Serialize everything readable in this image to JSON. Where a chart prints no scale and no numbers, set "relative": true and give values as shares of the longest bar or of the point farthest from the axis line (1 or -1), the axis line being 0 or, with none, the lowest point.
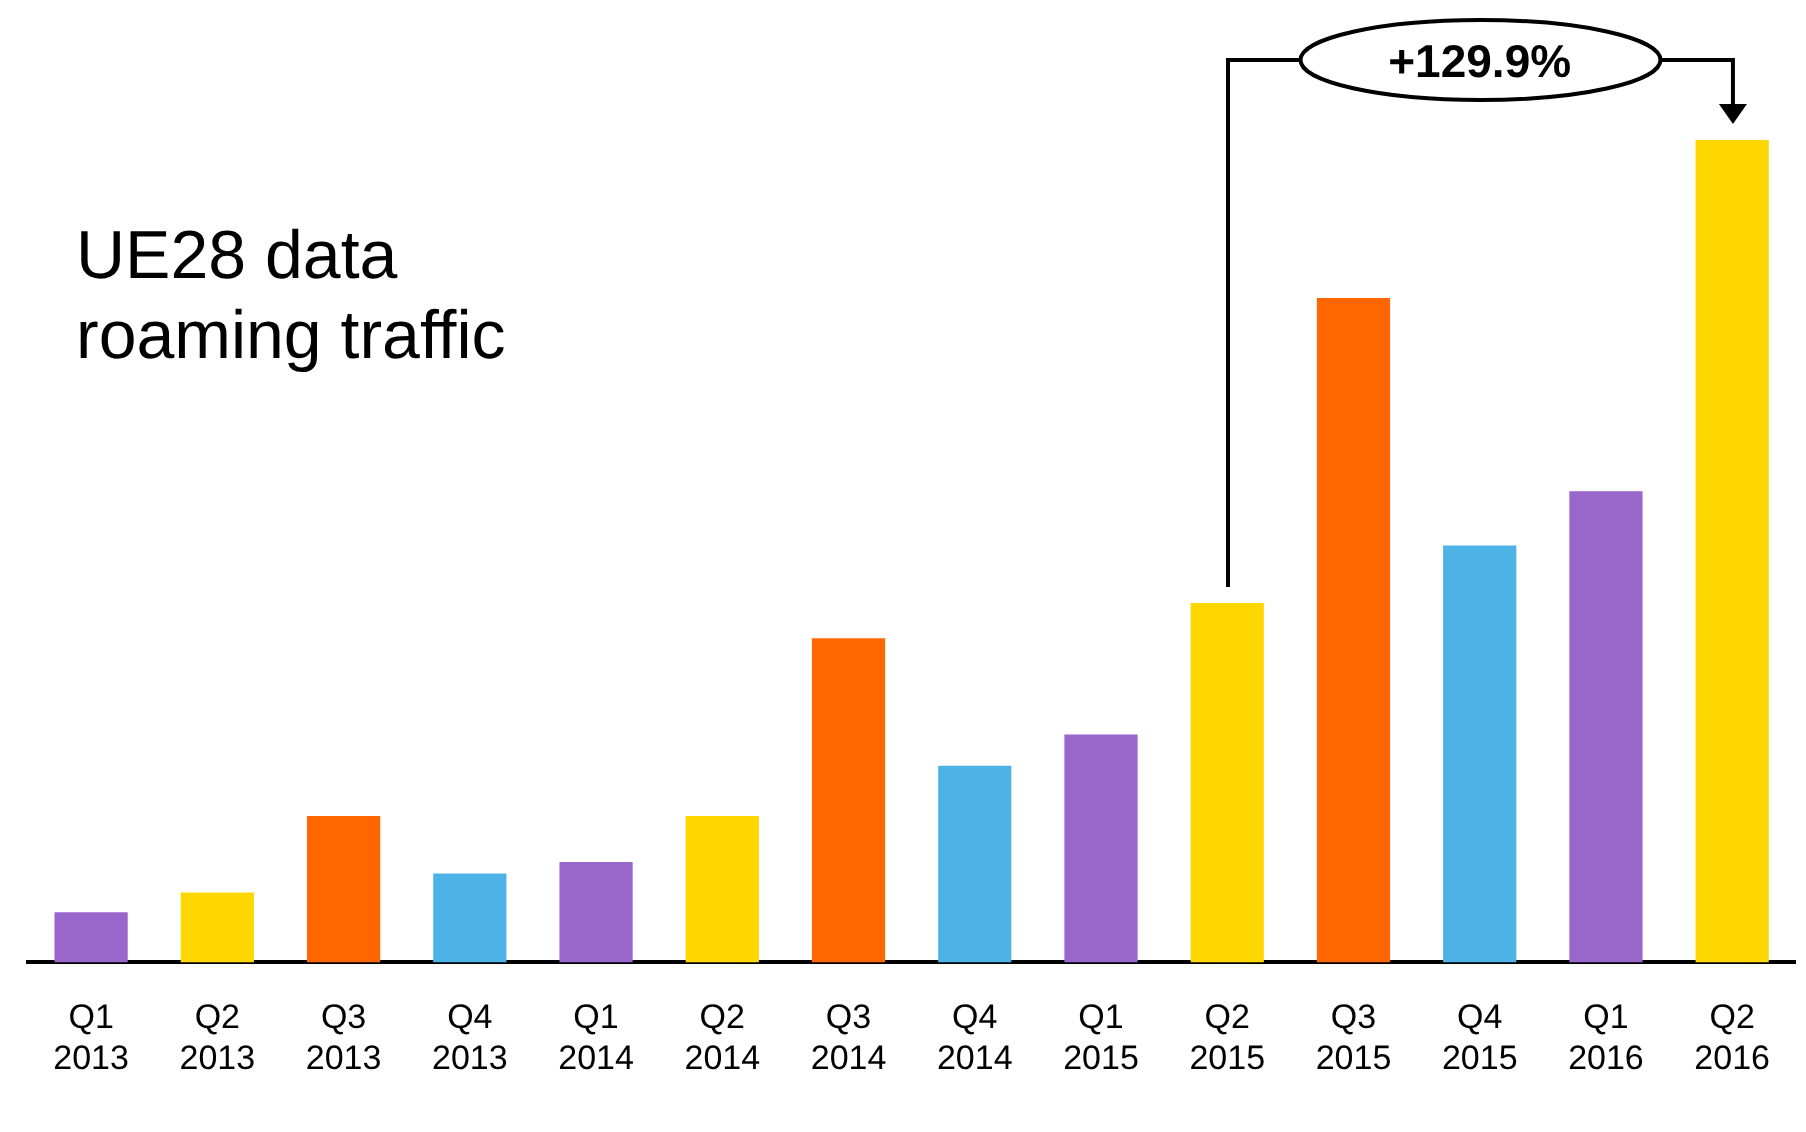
{
  "chart_data": {
    "type": "bar",
    "title": "UE28 data roaming traffic",
    "relative": true,
    "categories": [
      "Q1 2013",
      "Q2 2013",
      "Q3 2013",
      "Q4 2013",
      "Q1 2014",
      "Q2 2014",
      "Q3 2014",
      "Q4 2014",
      "Q1 2015",
      "Q2 2015",
      "Q3 2015",
      "Q4 2015",
      "Q1 2016",
      "Q2 2016"
    ],
    "values": [
      0.061,
      0.085,
      0.178,
      0.108,
      0.122,
      0.178,
      0.394,
      0.239,
      0.277,
      0.437,
      0.808,
      0.507,
      0.573,
      1
    ],
    "colors": [
      "#9966cc",
      "#ffd700",
      "#ff6600",
      "#4db3e6",
      "#9966cc",
      "#ffd700",
      "#ff6600",
      "#4db3e6",
      "#9966cc",
      "#ffd700",
      "#ff6600",
      "#4db3e6",
      "#9966cc",
      "#ffd700"
    ],
    "annotations": [
      "+129.9%"
    ],
    "grid": false,
    "legend": false
  }
}
